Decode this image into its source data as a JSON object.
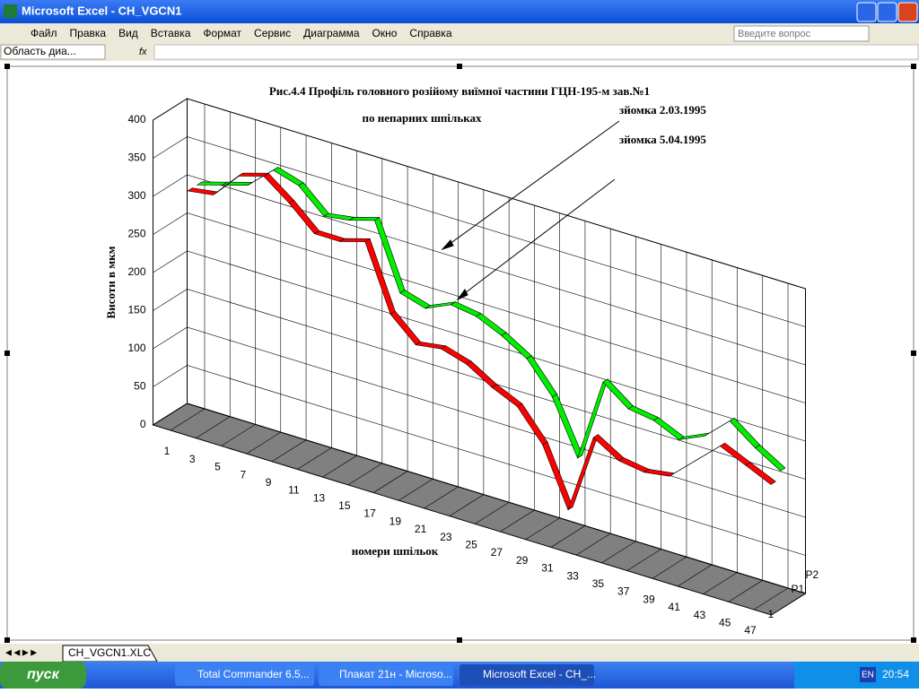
{
  "window": {
    "title": "Microsoft Excel - CH_VGCN1"
  },
  "menu": [
    "Файл",
    "Правка",
    "Вид",
    "Вставка",
    "Формат",
    "Сервис",
    "Диаграмма",
    "Окно",
    "Справка"
  ],
  "help_box": "Введите вопрос",
  "name_box": "Область диа...",
  "fx": "fx",
  "sheet_tab": "CH_VGCN1.XLC",
  "taskbar": {
    "start": "пуск",
    "tasks": [
      "Total Commander 6.5...",
      "Плакат 21н - Microso...",
      "Microsoft Excel - CH_..."
    ],
    "lang": "EN",
    "clock": "20:54"
  },
  "chart_data": {
    "type": "line",
    "title": "Рис.4.4 Профіль головного розійому виїмної  частини ГЦН-195-м зав.№1",
    "subtitle": "по непарних шпільках",
    "y_label": "Висоти в мкм",
    "x_label": "номери шпільок",
    "annotations": [
      "зйомка 2.03.1995",
      "зйомка 5.04.1995"
    ],
    "categories": [
      1,
      3,
      5,
      7,
      9,
      11,
      13,
      15,
      17,
      19,
      21,
      23,
      25,
      27,
      29,
      31,
      33,
      35,
      37,
      39,
      41,
      43,
      45,
      47
    ],
    "depth_extra_label": "1",
    "series": [
      {
        "name": "P1",
        "color": "#ff0000",
        "values": [
          300,
          305,
          340,
          350,
          325,
          295,
          295,
          305,
          220,
          190,
          195,
          185,
          165,
          150,
          110,
          35,
          140,
          120,
          115,
          120,
          150,
          180,
          165,
          150
        ]
      },
      {
        "name": "P2",
        "color": "#00ee00",
        "values": [
          300,
          310,
          320,
          350,
          340,
          310,
          315,
          325,
          240,
          230,
          245,
          240,
          225,
          205,
          165,
          95,
          205,
          180,
          175,
          160,
          175,
          205,
          180,
          160
        ]
      }
    ],
    "ylim": [
      0,
      400
    ],
    "yticks": [
      0,
      50,
      100,
      150,
      200,
      250,
      300,
      350,
      400
    ],
    "grid": true
  }
}
